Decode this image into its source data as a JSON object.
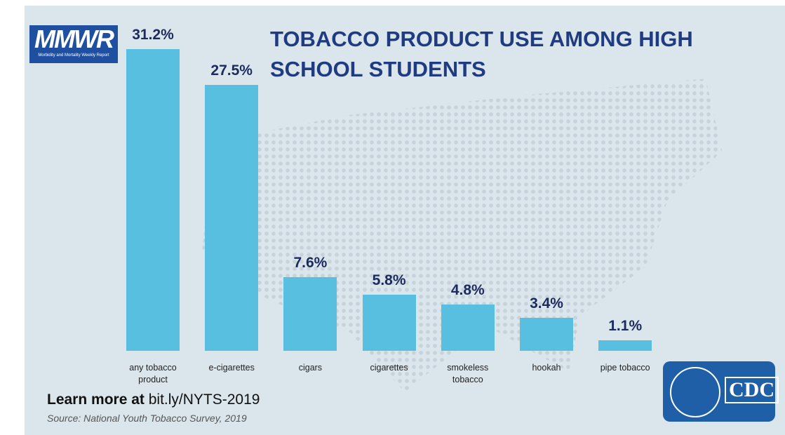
{
  "chart_data": {
    "type": "bar",
    "title": "TOBACCO PRODUCT USE AMONG HIGH SCHOOL STUDENTS",
    "categories": [
      "any tobacco product",
      "e-cigarettes",
      "cigars",
      "cigarettes",
      "smokeless tobacco",
      "hookah",
      "pipe tobacco"
    ],
    "values": [
      31.2,
      27.5,
      7.6,
      5.8,
      4.8,
      3.4,
      1.1
    ],
    "value_labels": [
      "31.2%",
      "27.5%",
      "7.6%",
      "5.8%",
      "4.8%",
      "3.4%",
      "1.1%"
    ],
    "color": "#58bfe0"
  },
  "branding": {
    "mmwr": "MMWR",
    "mmwr_subtitle": "Morbidity and Mortality Weekly Report",
    "cdc": "CDC"
  },
  "footer": {
    "learn_more": "Learn more at",
    "link": "bit.ly/NYTS-2019",
    "source_label": "Source:",
    "source": "National Youth Tobacco Survey, 2019"
  }
}
